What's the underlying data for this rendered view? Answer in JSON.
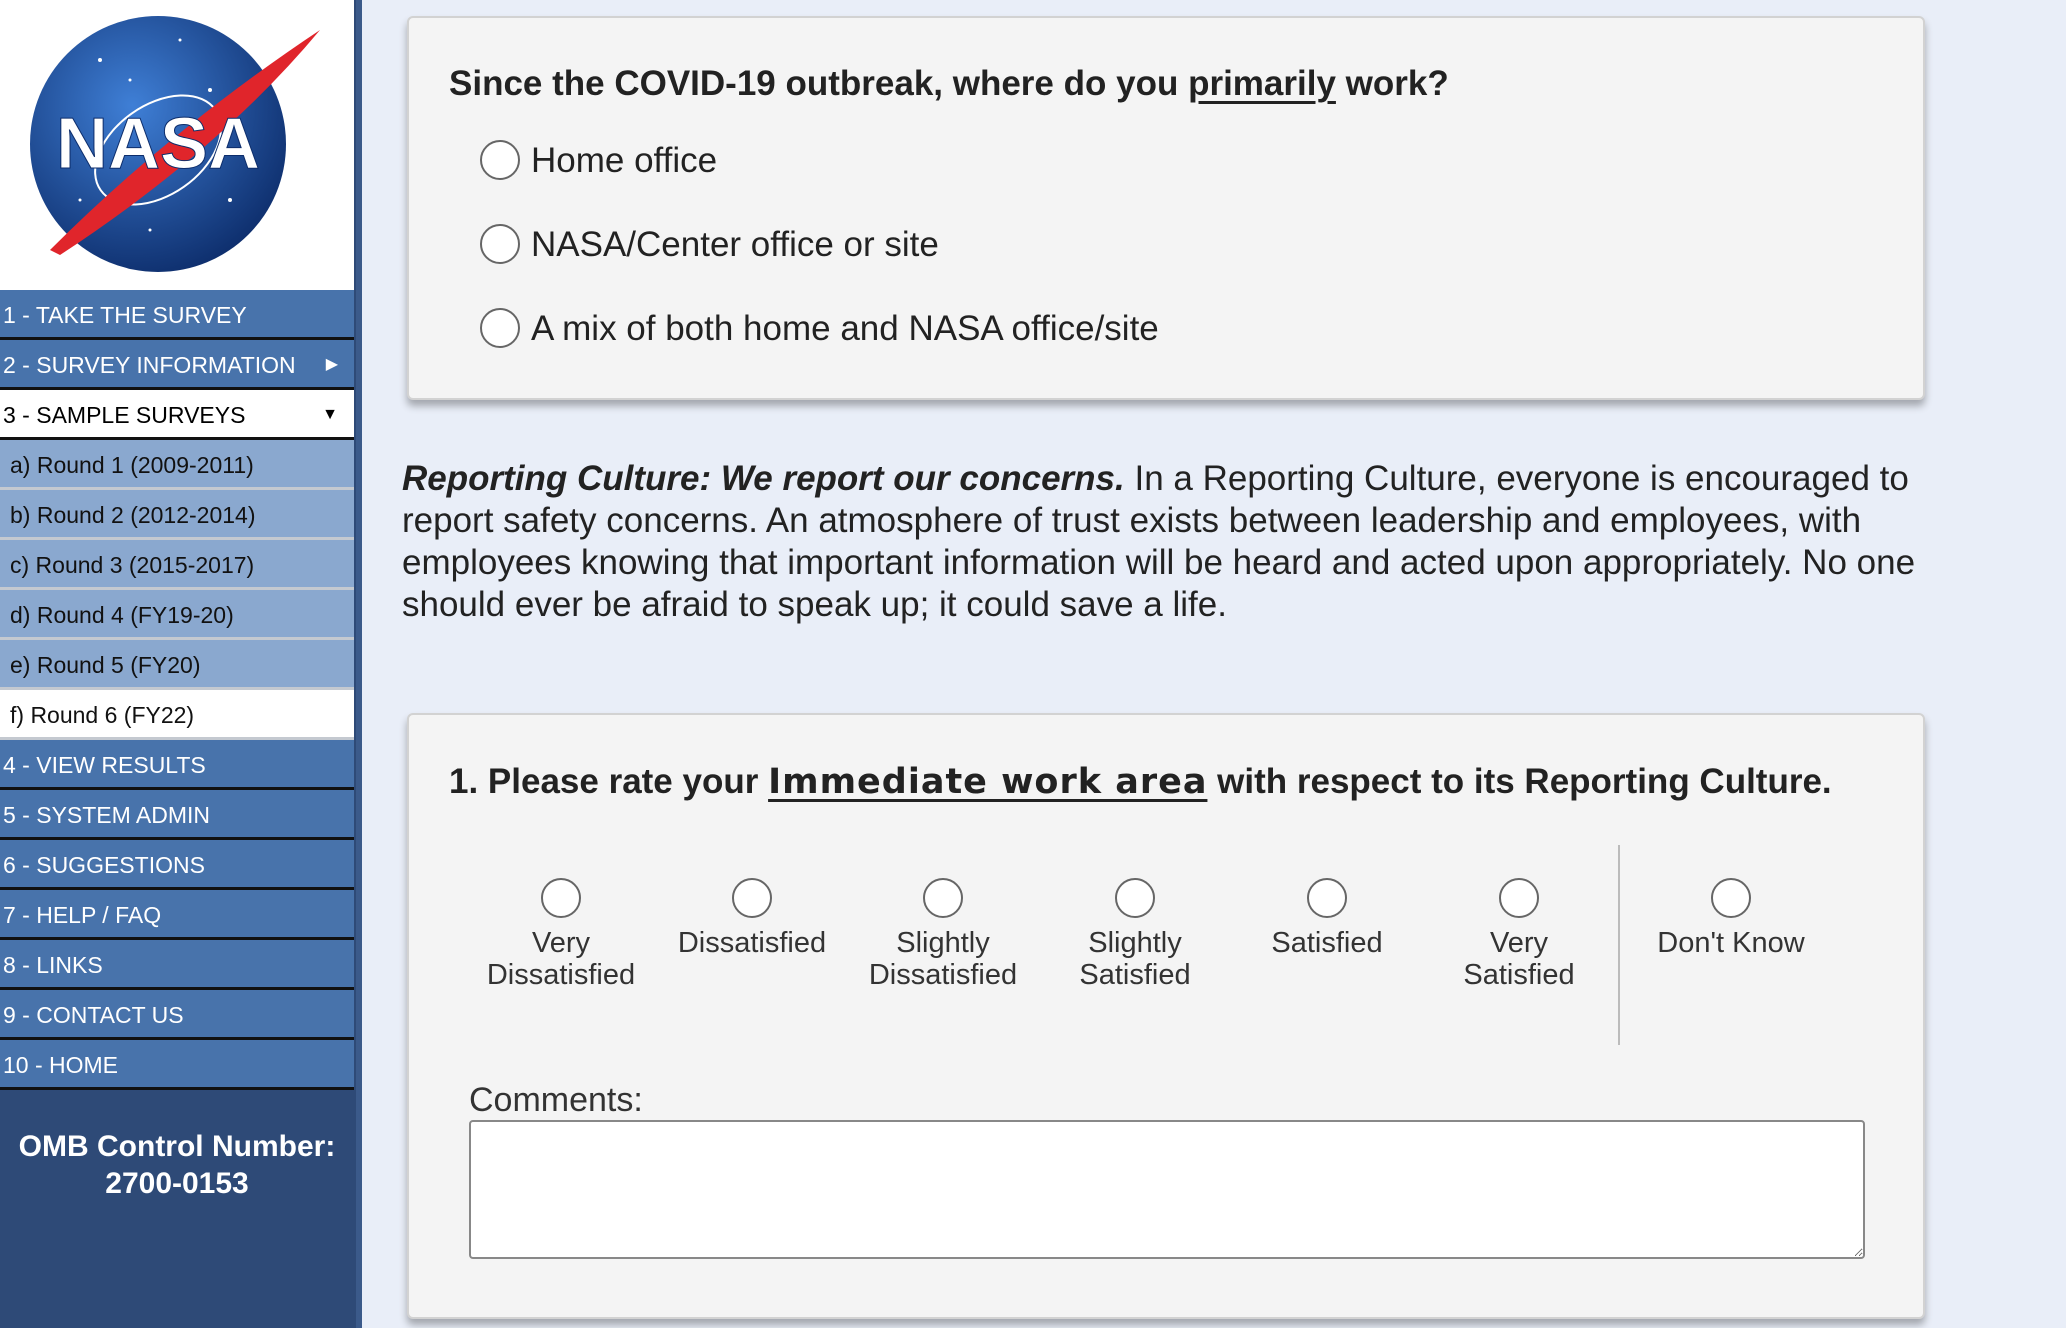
{
  "logo": {
    "text": "NASA",
    "colors": {
      "globe": "#1b4fa0",
      "swoosh": "#e0252b"
    }
  },
  "sidebar": {
    "items": [
      {
        "label": "1 - TAKE THE SURVEY"
      },
      {
        "label": "2 - SURVEY INFORMATION",
        "icon": "caret-right-icon"
      },
      {
        "label": "3 - SAMPLE SURVEYS",
        "icon": "caret-down-icon"
      },
      {
        "label": "a) Round 1 (2009-2011)"
      },
      {
        "label": "b) Round 2 (2012-2014)"
      },
      {
        "label": "c) Round 3 (2015-2017)"
      },
      {
        "label": "d) Round 4 (FY19-20)"
      },
      {
        "label": "e) Round 5 (FY20)"
      },
      {
        "label": "f) Round 6 (FY22)"
      },
      {
        "label": "4 - VIEW RESULTS"
      },
      {
        "label": "5 - SYSTEM ADMIN"
      },
      {
        "label": "6 - SUGGESTIONS"
      },
      {
        "label": "7 - HELP / FAQ"
      },
      {
        "label": "8 - LINKS"
      },
      {
        "label": "9 - CONTACT US"
      },
      {
        "label": "10 - HOME"
      }
    ],
    "omb_line1": "OMB Control Number:",
    "omb_line2": "2700-0153"
  },
  "covid_question": {
    "pre": "Since the COVID-19 outbreak, where do you ",
    "emph": "primarily",
    "post": " work?",
    "options": [
      "Home office",
      "NASA/Center office or site",
      "A mix of both home and NASA office/site"
    ]
  },
  "culture": {
    "title": "Reporting Culture:  We report our concerns.",
    "text": "  In a Reporting Culture, everyone is encouraged to report safety concerns. An atmosphere of trust exists between leadership and employees, with employees knowing that important information will be heard and acted upon appropriately. No one should ever be afraid to speak up; it could save a life."
  },
  "question1": {
    "pre": "1. Please rate your ",
    "emph": "Immediate work area",
    "post": " with respect to its Reporting Culture.",
    "scale": [
      [
        "Very",
        "Dissatisfied"
      ],
      [
        "Dissatisfied",
        ""
      ],
      [
        "Slightly",
        "Dissatisfied"
      ],
      [
        "Slightly",
        "Satisfied"
      ],
      [
        "Satisfied",
        ""
      ],
      [
        "Very",
        "Satisfied"
      ],
      [
        "Don't Know",
        ""
      ]
    ],
    "comments_label": "Comments:",
    "comments_value": ""
  }
}
